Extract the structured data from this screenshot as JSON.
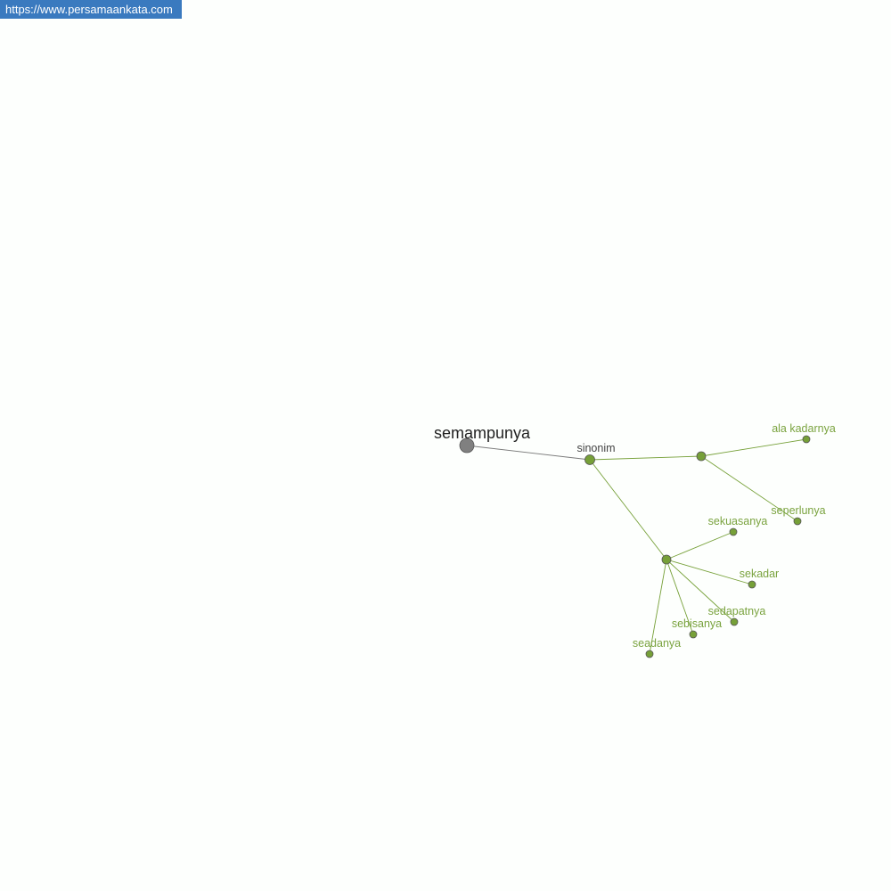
{
  "banner": {
    "url": "https://www.persamaankata.com"
  },
  "colors": {
    "root": "#808080",
    "accent": "#76a038",
    "edge_root": "#7a7a7a",
    "label_dark": "#222222",
    "label_grey": "#444444",
    "label_green": "#7aa33f"
  },
  "graph": {
    "root": {
      "id": "root",
      "label": "semampunya"
    },
    "category": {
      "id": "sinonim",
      "label": "sinonim"
    },
    "hubs": [
      {
        "id": "hub1"
      },
      {
        "id": "hub2"
      }
    ],
    "leaves": [
      {
        "id": "l1",
        "label": "ala kadarnya",
        "hub": "hub1"
      },
      {
        "id": "l2",
        "label": "seperlunya",
        "hub": "hub1"
      },
      {
        "id": "l3",
        "label": "sekuasanya",
        "hub": "hub2"
      },
      {
        "id": "l4",
        "label": "sekadar",
        "hub": "hub2"
      },
      {
        "id": "l5",
        "label": "sedapatnya",
        "hub": "hub2"
      },
      {
        "id": "l6",
        "label": "sebisanya",
        "hub": "hub2"
      },
      {
        "id": "l7",
        "label": "seadanya",
        "hub": "hub2"
      }
    ]
  }
}
